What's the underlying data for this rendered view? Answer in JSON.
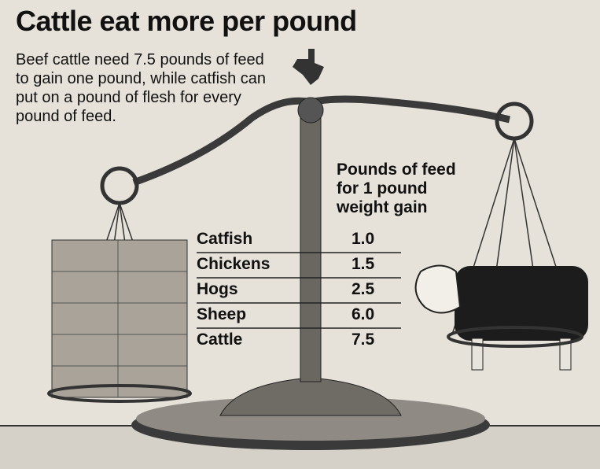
{
  "title": "Cattle eat more per pound",
  "description": "Beef cattle need 7.5 pounds of feed to gain one pound, while catfish can put on a pound of flesh for every pound of feed.",
  "table": {
    "header": "Pounds of feed for 1 pound weight gain",
    "rows": [
      [
        "Catfish",
        "1.0"
      ],
      [
        "Chickens",
        "1.5"
      ],
      [
        "Hogs",
        "2.5"
      ],
      [
        "Sheep",
        "6.0"
      ],
      [
        "Cattle",
        "7.5"
      ]
    ]
  }
}
